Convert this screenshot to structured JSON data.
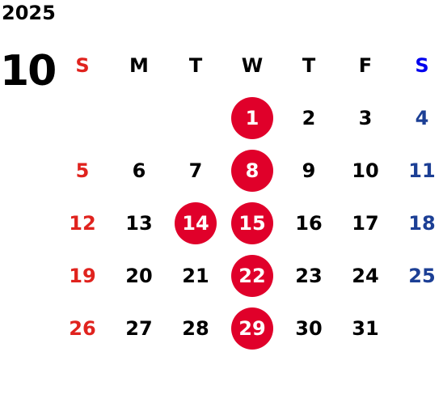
{
  "year": "2025",
  "month": "10",
  "weekdays": [
    "S",
    "M",
    "T",
    "W",
    "T",
    "F",
    "S"
  ],
  "first_weekday_index": 3,
  "days": [
    "1",
    "2",
    "3",
    "4",
    "5",
    "6",
    "7",
    "8",
    "9",
    "10",
    "11",
    "12",
    "13",
    "14",
    "15",
    "16",
    "17",
    "18",
    "19",
    "20",
    "21",
    "22",
    "23",
    "24",
    "25",
    "26",
    "27",
    "28",
    "29",
    "30",
    "31"
  ],
  "highlighted_days": [
    "1",
    "8",
    "14",
    "15",
    "22",
    "29"
  ],
  "colors": {
    "sunday": "#e0231e",
    "saturday": "#1c3f95",
    "saturday_header": "#0000ee",
    "weekday": "#000000",
    "highlight": "#e0002a"
  }
}
